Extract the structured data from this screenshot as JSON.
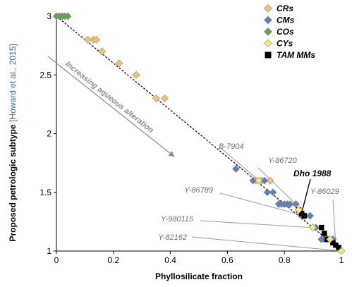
{
  "chart_data": {
    "type": "scatter",
    "xlabel": "Phyllosilicate fraction",
    "ylabel": "Proposed petrologic subtype",
    "ylabel_ref": "[Howard et al., 2015]",
    "xlim": [
      0,
      1
    ],
    "ylim": [
      1,
      3
    ],
    "x_ticks": [
      "0",
      "0.2",
      "0.4",
      "0.6",
      "0.8",
      "1"
    ],
    "y_ticks": [
      "1",
      "1.5",
      "2",
      "2.5",
      "3"
    ],
    "grid": false,
    "legend_position": "top-right",
    "trend_line": {
      "from": [
        0,
        3
      ],
      "to": [
        1,
        1
      ],
      "style": "dashed"
    },
    "arrow_annotation": {
      "text": "Increasing aqueous alteration"
    },
    "series": [
      {
        "name": "CRs",
        "marker": "diamond",
        "color": "#f2c46f",
        "points": [
          [
            0.11,
            2.8
          ],
          [
            0.13,
            2.8
          ],
          [
            0.14,
            2.8
          ],
          [
            0.16,
            2.7
          ],
          [
            0.22,
            2.6
          ],
          [
            0.28,
            2.5
          ],
          [
            0.35,
            2.3
          ],
          [
            0.38,
            2.3
          ],
          [
            0.7,
            1.6
          ],
          [
            0.72,
            1.6
          ],
          [
            0.75,
            1.6
          ]
        ]
      },
      {
        "name": "CMs",
        "marker": "diamond",
        "color": "#5b7fbf",
        "points": [
          [
            0.63,
            1.7
          ],
          [
            0.69,
            1.6
          ],
          [
            0.73,
            1.6
          ],
          [
            0.74,
            1.5
          ],
          [
            0.76,
            1.5
          ],
          [
            0.78,
            1.4
          ],
          [
            0.79,
            1.4
          ],
          [
            0.8,
            1.4
          ],
          [
            0.81,
            1.4
          ],
          [
            0.82,
            1.4
          ],
          [
            0.84,
            1.4
          ],
          [
            0.86,
            1.3
          ],
          [
            0.87,
            1.3
          ],
          [
            0.89,
            1.3
          ],
          [
            0.91,
            1.2
          ],
          [
            0.93,
            1.1
          ],
          [
            0.94,
            1.1
          ],
          [
            0.95,
            1.1
          ],
          [
            0.97,
            1.1
          ]
        ]
      },
      {
        "name": "COs",
        "marker": "diamond",
        "color": "#56a84b",
        "points": [
          [
            0.0,
            3.0
          ],
          [
            0.01,
            3.0
          ],
          [
            0.02,
            3.0
          ],
          [
            0.03,
            3.0
          ],
          [
            0.04,
            3.0
          ]
        ]
      },
      {
        "name": "CYs",
        "marker": "diamond",
        "color": "#f2e86a",
        "points": [
          [
            0.71,
            1.6
          ],
          [
            0.85,
            1.35
          ],
          [
            0.9,
            1.2
          ],
          [
            0.96,
            1.1
          ],
          [
            1.0,
            1.0
          ]
        ]
      },
      {
        "name": "TAM MMs",
        "marker": "square",
        "color": "#000000",
        "points": [
          [
            0.85,
            1.35
          ],
          [
            0.86,
            1.32
          ],
          [
            0.87,
            1.3
          ],
          [
            0.93,
            1.2
          ],
          [
            0.94,
            1.15
          ],
          [
            0.95,
            1.1
          ],
          [
            0.97,
            1.07
          ],
          [
            0.98,
            1.05
          ],
          [
            0.99,
            1.03
          ]
        ]
      }
    ],
    "annotations": [
      {
        "text": "B-7904",
        "point": [
          0.71,
          1.6
        ],
        "bold": false
      },
      {
        "text": "Y-86720",
        "point": [
          0.84,
          1.4
        ],
        "bold": false
      },
      {
        "text": "Dho 1988",
        "point": [
          0.86,
          1.32
        ],
        "bold": true
      },
      {
        "text": "Y-86029",
        "point": [
          0.98,
          1.05
        ],
        "bold": false
      },
      {
        "text": "Y-86789",
        "point": [
          0.87,
          1.3
        ],
        "bold": false
      },
      {
        "text": "Y-980115",
        "point": [
          0.9,
          1.2
        ],
        "bold": false
      },
      {
        "text": "Y-82162",
        "point": [
          1.0,
          1.0
        ],
        "bold": false
      }
    ]
  }
}
